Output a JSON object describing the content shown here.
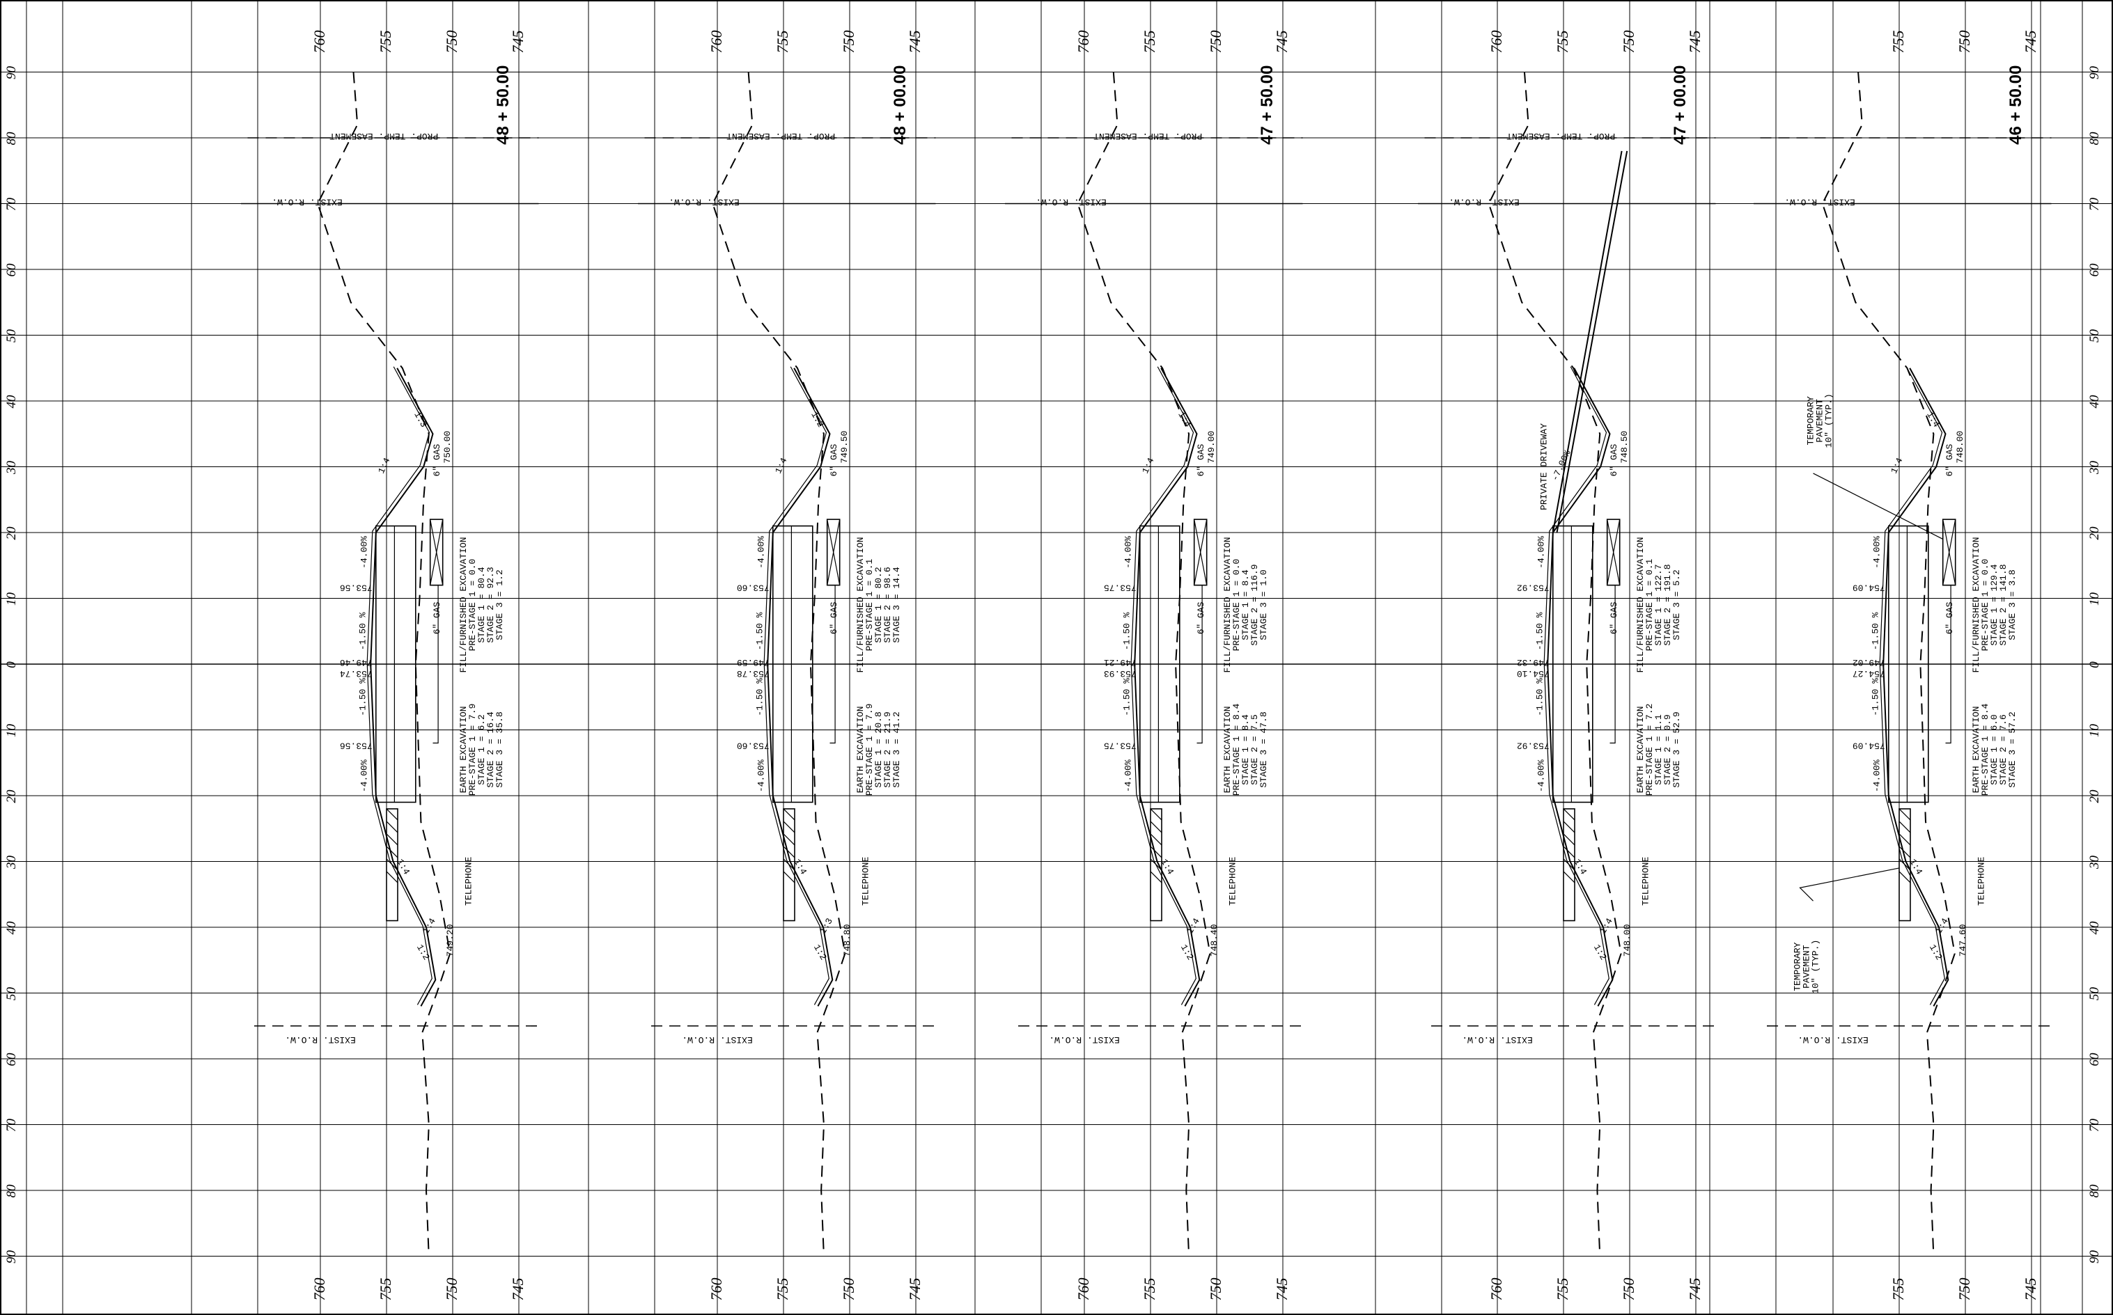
{
  "sheet": {
    "offset_ticks_top_to_bottom": [
      "90",
      "80",
      "70",
      "60",
      "50",
      "40",
      "30",
      "20",
      "10",
      "0",
      "10",
      "20",
      "30",
      "40",
      "50",
      "60",
      "70",
      "80",
      "90"
    ],
    "elevation_ticks": [
      "760",
      "755",
      "750",
      "745"
    ]
  },
  "sections": [
    {
      "station": "48 + 50.00",
      "rail_elevations": [
        "760",
        "755",
        "750",
        "745"
      ],
      "temp_easement_label": "PROP. TEMP. EASEMENT",
      "row_top_label": "EXIST. R.O.W.",
      "row_bottom_label": "EXIST. R.O.W.",
      "gas_label_upper": "6\" GAS",
      "gas_label_lower": "6\" GAS",
      "telephone_label": "TELEPHONE",
      "upper_edge_elev": "750.00",
      "lower_edge_elev": "749.20",
      "slope_upper_1": "1:4",
      "slope_upper_2": "1:3",
      "slope_lower_1": "1:4",
      "slope_lower_2": "1:2",
      "slope_lower_3": "1:4",
      "cross_slope_upper": "-4.00%",
      "cross_slope_mid_upper": "-1.50 %",
      "cross_slope_mid_lower": "-1.50 %",
      "cross_slope_lower": "-4.00%",
      "elev_upper": "753.56",
      "elev_center_a": "753.74",
      "elev_center_b": "749.46",
      "elev_lower": "753.56",
      "fill_lines": [
        "FILL/FURNISHED EXCAVATION",
        "PRE-STAGE 1 = 0.0",
        "STAGE 1 = 80.4",
        "STAGE 2 = 92.3",
        "STAGE 3 = 1.2"
      ],
      "earth_lines": [
        "EARTH EXCAVATION",
        "PRE-STAGE 1 = 7.9",
        "STAGE 1 = 6.2",
        "STAGE 2 = 16.4",
        "STAGE 3 = 35.8"
      ],
      "extra_label": "",
      "tp_upper_lines": [],
      "tp_lower_lines": []
    },
    {
      "station": "48 + 00.00",
      "rail_elevations": [
        "760",
        "755",
        "750",
        "745"
      ],
      "temp_easement_label": "PROP. TEMP. EASEMENT",
      "row_top_label": "EXIST. R.O.W.",
      "row_bottom_label": "EXIST. R.O.W.",
      "gas_label_upper": "6\" GAS",
      "gas_label_lower": "6\" GAS",
      "telephone_label": "TELEPHONE",
      "upper_edge_elev": "749.50",
      "lower_edge_elev": "748.80",
      "slope_upper_1": "1:4",
      "slope_upper_2": "1:2",
      "slope_lower_1": "1:4",
      "slope_lower_2": "1:2",
      "slope_lower_3": "1:3",
      "cross_slope_upper": "-4.00%",
      "cross_slope_mid_upper": "-1.50 %",
      "cross_slope_mid_lower": "-1.50 %",
      "cross_slope_lower": "-4.00%",
      "elev_upper": "753.60",
      "elev_center_a": "753.78",
      "elev_center_b": "749.59",
      "elev_lower": "753.60",
      "fill_lines": [
        "FILL/FURNISHED EXCAVATION",
        "PRE-STAGE 1 = 0.1",
        "STAGE 1 = 80.2",
        "STAGE 2 = 98.6",
        "STAGE 3 = 14.4"
      ],
      "earth_lines": [
        "EARTH EXCAVATION",
        "PRE-STAGE 1 = 7.9",
        "STAGE 1 = 20.8",
        "STAGE 2 = 21.9",
        "STAGE 3 = 41.2"
      ],
      "extra_label": "",
      "tp_upper_lines": [],
      "tp_lower_lines": []
    },
    {
      "station": "47 + 50.00",
      "rail_elevations": [
        "760",
        "755",
        "750",
        "745"
      ],
      "temp_easement_label": "PROP. TEMP. EASEMENT",
      "row_top_label": "EXIST. R.O.W.",
      "row_bottom_label": "EXIST. R.O.W.",
      "gas_label_upper": "6\" GAS",
      "gas_label_lower": "6\" GAS",
      "telephone_label": "TELEPHONE",
      "upper_edge_elev": "749.00",
      "lower_edge_elev": "748.40",
      "slope_upper_1": "1:4",
      "slope_upper_2": "1:4",
      "slope_lower_1": "1:4",
      "slope_lower_2": "1:2",
      "slope_lower_3": "1:4",
      "cross_slope_upper": "-4.00%",
      "cross_slope_mid_upper": "-1.50 %",
      "cross_slope_mid_lower": "-1.50 %",
      "cross_slope_lower": "-4.00%",
      "elev_upper": "753.75",
      "elev_center_a": "753.93",
      "elev_center_b": "749.21",
      "elev_lower": "753.75",
      "fill_lines": [
        "FILL/FURNISHED EXCAVATION",
        "PRE-STAGE 1 = 0.0",
        "STAGE 1 = 8.4",
        "STAGE 2 = 116.9",
        "STAGE 3 = 1.0"
      ],
      "earth_lines": [
        "EARTH EXCAVATION",
        "PRE-STAGE 1 = 8.4",
        "STAGE 1 = 8.4",
        "STAGE 2 = 7.5",
        "STAGE 3 = 47.8"
      ],
      "extra_label": "",
      "tp_upper_lines": [],
      "tp_lower_lines": []
    },
    {
      "station": "47 + 00.00",
      "rail_elevations": [
        "760",
        "755",
        "750",
        "745"
      ],
      "temp_easement_label": "PROP. TEMP. EASEMENT",
      "row_top_label": "EXIST. R.O.W.",
      "row_bottom_label": "EXIST. R.O.W.",
      "gas_label_upper": "6\" GAS",
      "gas_label_lower": "6\" GAS",
      "telephone_label": "TELEPHONE",
      "upper_edge_elev": "748.50",
      "lower_edge_elev": "748.00",
      "slope_upper_1": "-7.00%",
      "slope_upper_2": "",
      "slope_lower_1": "1:4",
      "slope_lower_2": "1:2",
      "slope_lower_3": "1:4",
      "cross_slope_upper": "-4.00%",
      "cross_slope_mid_upper": "-1.50 %",
      "cross_slope_mid_lower": "-1.50 %",
      "cross_slope_lower": "-4.00%",
      "elev_upper": "753.92",
      "elev_center_a": "754.10",
      "elev_center_b": "749.32",
      "elev_lower": "753.92",
      "fill_lines": [
        "FILL/FURNISHED EXCAVATION",
        "PRE-STAGE 1 = 0.1",
        "STAGE 1 = 122.7",
        "STAGE 2 = 191.8",
        "STAGE 3 = 5.2"
      ],
      "earth_lines": [
        "EARTH EXCAVATION",
        "PRE-STAGE 1 = 7.2",
        "STAGE 1 = 1.1",
        "STAGE 2 = 0.9",
        "STAGE 3 = 52.9"
      ],
      "extra_label": "PRIVATE DRIVEWAY",
      "tp_upper_lines": [],
      "tp_lower_lines": []
    },
    {
      "station": "46 + 50.00",
      "rail_elevations": [
        "",
        "755",
        "750",
        "745"
      ],
      "temp_easement_label": "",
      "row_top_label": "EXIST. R.O.W.",
      "row_bottom_label": "EXIST. R.O.W.",
      "gas_label_upper": "6\" GAS",
      "gas_label_lower": "6\" GAS",
      "telephone_label": "TELEPHONE",
      "upper_edge_elev": "748.00",
      "lower_edge_elev": "747.60",
      "slope_upper_1": "1:4",
      "slope_upper_2": "1:4",
      "slope_lower_1": "1:4",
      "slope_lower_2": "1:2",
      "slope_lower_3": "1:4",
      "cross_slope_upper": "-4.00%",
      "cross_slope_mid_upper": "-1.50 %",
      "cross_slope_mid_lower": "-1.50 %",
      "cross_slope_lower": "-4.00%",
      "elev_upper": "754.09",
      "elev_center_a": "754.27",
      "elev_center_b": "749.02",
      "elev_lower": "754.09",
      "fill_lines": [
        "FILL/FURNISHED EXCAVATION",
        "PRE-STAGE 1 = 0.0",
        "STAGE 1 = 129.4",
        "STAGE 2 = 141.8",
        "STAGE 3 = 3.8"
      ],
      "earth_lines": [
        "EARTH EXCAVATION",
        "PRE-STAGE 1 = 8.4",
        "STAGE 1 = 6.0",
        "STAGE 2 = 7.6",
        "STAGE 3 = 57.2"
      ],
      "extra_label": "",
      "tp_upper_lines": [
        "TEMPORARY",
        "PAVEMENT",
        "10\" (TYP.)"
      ],
      "tp_lower_lines": [
        "TEMPORARY",
        "PAVEMENT",
        "10\" (TYP.)"
      ]
    }
  ]
}
